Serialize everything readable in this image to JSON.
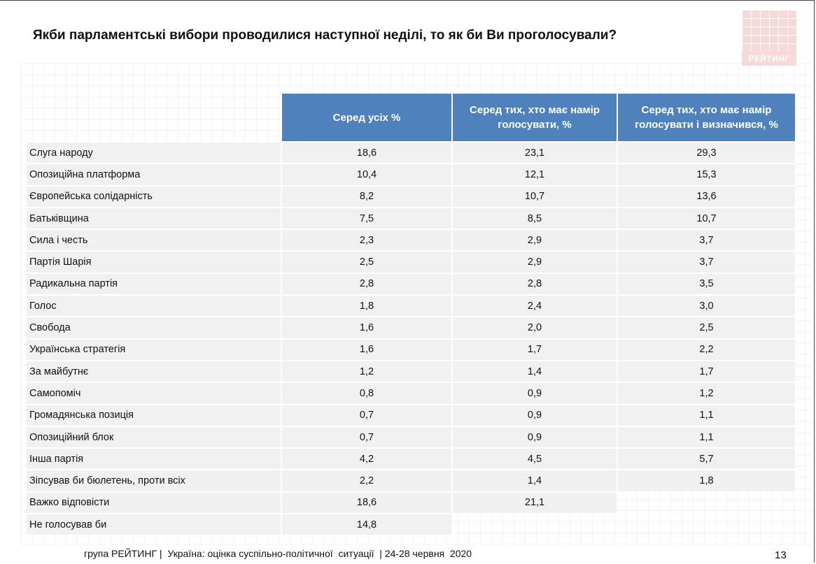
{
  "title": "Якби парламентські вибори проводилися наступної неділі, то як би Ви проголосували?",
  "logo_text": "РЕЙТИНГ",
  "chart_data": {
    "type": "table",
    "columns": [
      "",
      "Серед усіх %",
      "Серед тих, хто має намір голосувати, %",
      "Серед тих, хто має намір голосувати і визначився, %"
    ],
    "rows": [
      {
        "name": "Слуга народу",
        "values": [
          "18,6",
          "23,1",
          "29,3"
        ]
      },
      {
        "name": "Опозиційна платформа",
        "values": [
          "10,4",
          "12,1",
          "15,3"
        ]
      },
      {
        "name": "Європейська солідарність",
        "values": [
          "8,2",
          "10,7",
          "13,6"
        ]
      },
      {
        "name": "Батьківщина",
        "values": [
          "7,5",
          "8,5",
          "10,7"
        ]
      },
      {
        "name": "Сила і честь",
        "values": [
          "2,3",
          "2,9",
          "3,7"
        ]
      },
      {
        "name": "Партія Шарія",
        "values": [
          "2,5",
          "2,9",
          "3,7"
        ]
      },
      {
        "name": "Радикальна партія",
        "values": [
          "2,8",
          "2,8",
          "3,5"
        ]
      },
      {
        "name": "Голос",
        "values": [
          "1,8",
          "2,4",
          "3,0"
        ]
      },
      {
        "name": "Свобода",
        "values": [
          "1,6",
          "2,0",
          "2,5"
        ]
      },
      {
        "name": "Українська стратегія",
        "values": [
          "1,6",
          "1,7",
          "2,2"
        ]
      },
      {
        "name": "За майбутнє",
        "values": [
          "1,2",
          "1,4",
          "1,7"
        ]
      },
      {
        "name": "Самопоміч",
        "values": [
          "0,8",
          "0,9",
          "1,2"
        ]
      },
      {
        "name": "Громадянська позиція",
        "values": [
          "0,7",
          "0,9",
          "1,1"
        ]
      },
      {
        "name": "Опозиційний блок",
        "values": [
          "0,7",
          "0,9",
          "1,1"
        ]
      },
      {
        "name": "Інша партія",
        "values": [
          "4,2",
          "4,5",
          "5,7"
        ]
      },
      {
        "name": "Зіпсував би бюлетень, проти всіх",
        "values": [
          "2,2",
          "1,4",
          "1,8"
        ]
      },
      {
        "name": "Важко відповісти",
        "values": [
          "18,6",
          "21,1",
          null
        ]
      },
      {
        "name": "Не голосував би",
        "values": [
          "14,8",
          null,
          null
        ]
      }
    ]
  },
  "footer": "група РЕЙТИНГ |  Україна: оцінка суспільно-політичної  ситуації  | 24-28 червня  2020",
  "page_number": "13"
}
